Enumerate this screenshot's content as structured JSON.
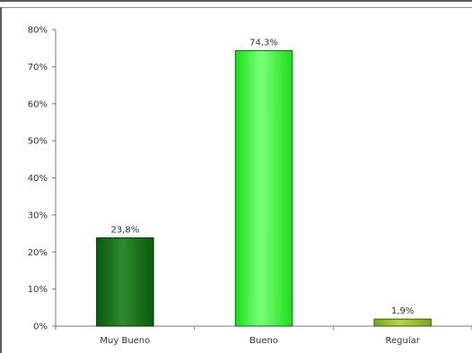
{
  "chart_data": {
    "type": "bar",
    "categories": [
      "Muy Bueno",
      "Bueno",
      "Regular"
    ],
    "values": [
      23.8,
      74.3,
      1.9
    ],
    "data_labels": [
      "23,8%",
      "74,3%",
      "1,9%"
    ],
    "y_tick_labels": [
      "0%",
      "10%",
      "20%",
      "30%",
      "40%",
      "50%",
      "60%",
      "70%",
      "80%"
    ],
    "ylim": [
      0,
      80
    ],
    "grid": false,
    "legend": "none",
    "bar_colors": [
      "#0a5a0a",
      "#18e018",
      "#7aa61a"
    ],
    "bar_highlight_colors": [
      "#2f8a2f",
      "#7cff7c",
      "#b6d84a"
    ],
    "bar_edge_colors": [
      "#003300",
      "#0a6a0a",
      "#3c5a08"
    ]
  }
}
